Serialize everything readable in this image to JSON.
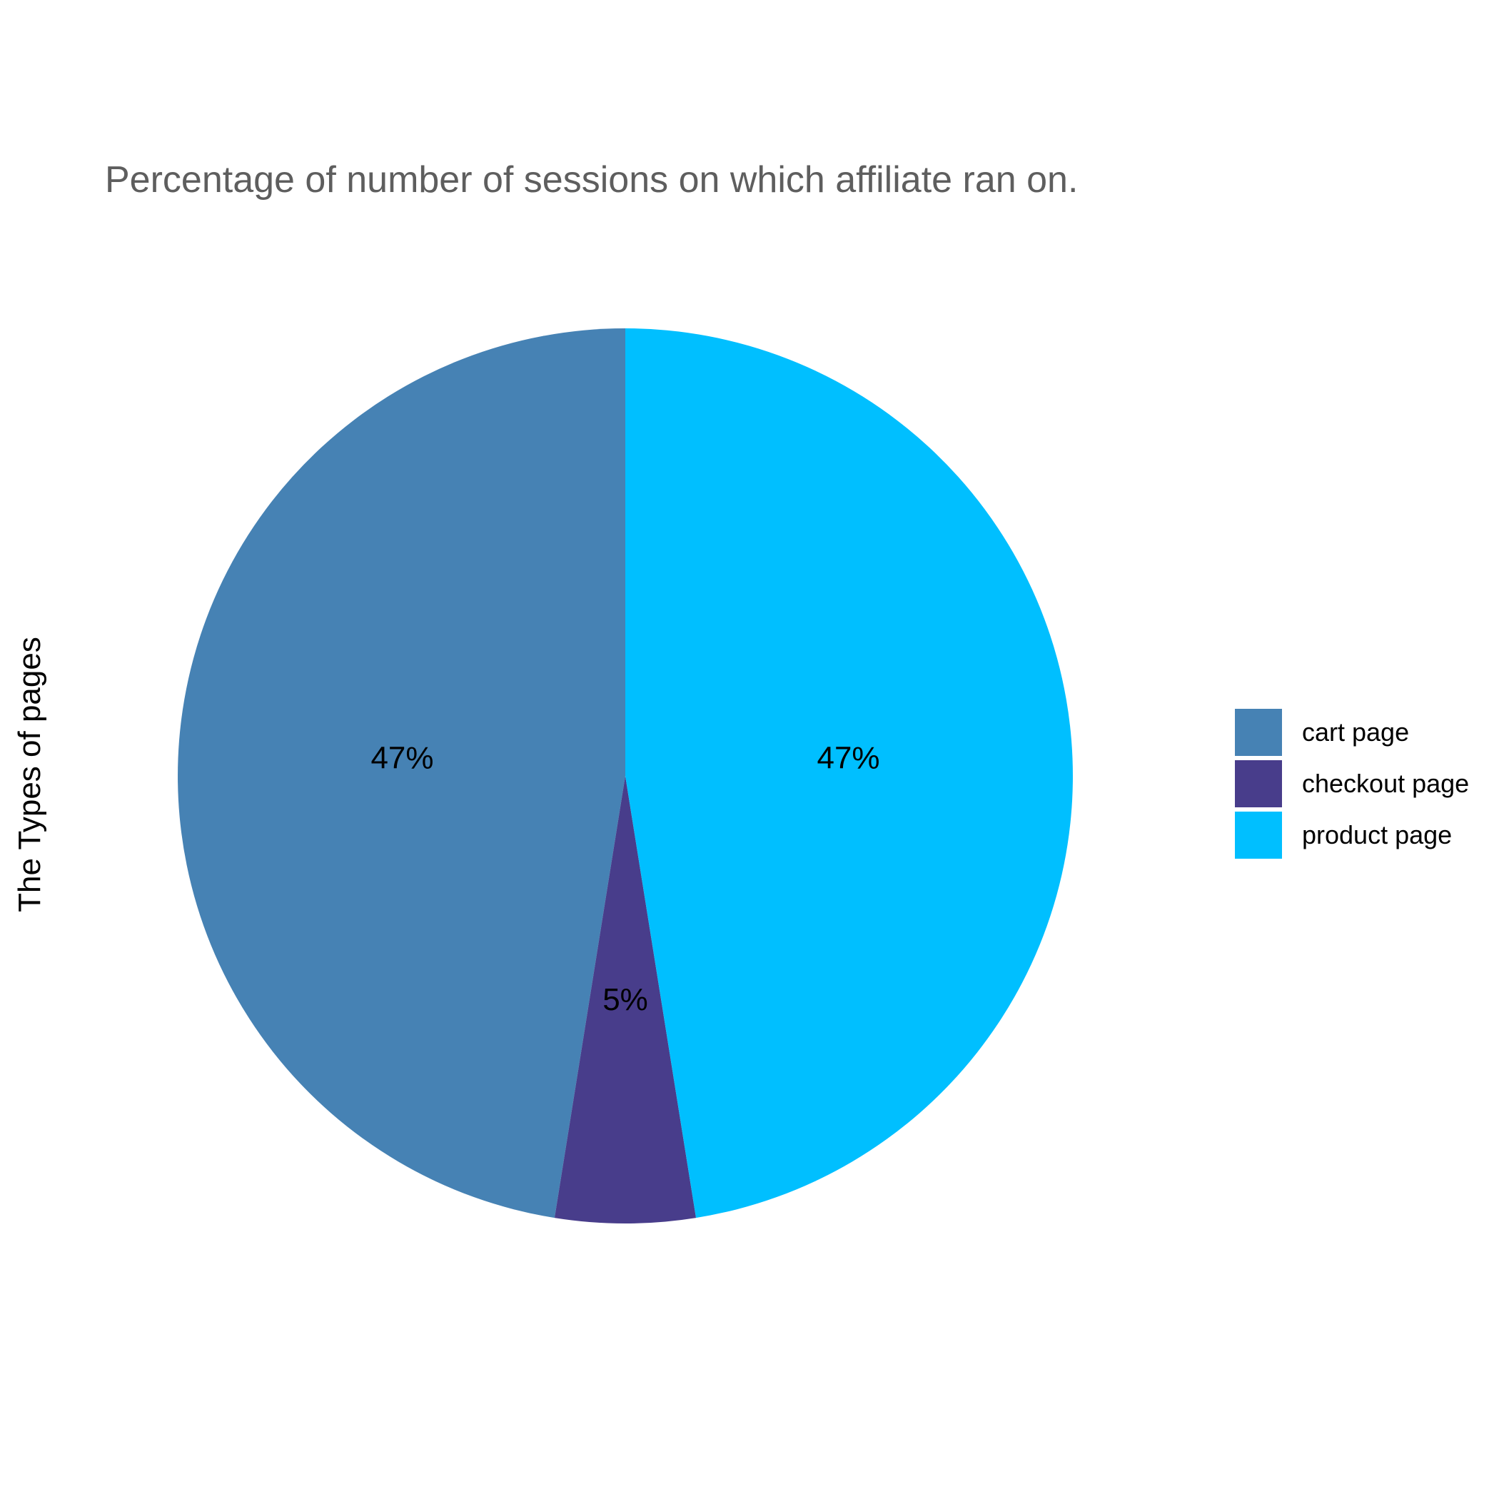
{
  "chart_data": {
    "type": "pie",
    "title": "Percentage of number of sessions on which affiliate ran on.",
    "ylabel": "The Types of pages",
    "slices": [
      {
        "label": "cart page",
        "value": 47,
        "display": "47%",
        "color": "#4682B4"
      },
      {
        "label": "checkout page",
        "value": 5,
        "display": "5%",
        "color": "#483D8B"
      },
      {
        "label": "product page",
        "value": 47,
        "display": "47%",
        "color": "#00BFFF"
      }
    ],
    "legend_position": "right",
    "start_angle": "top",
    "direction": "counterclockwise"
  }
}
